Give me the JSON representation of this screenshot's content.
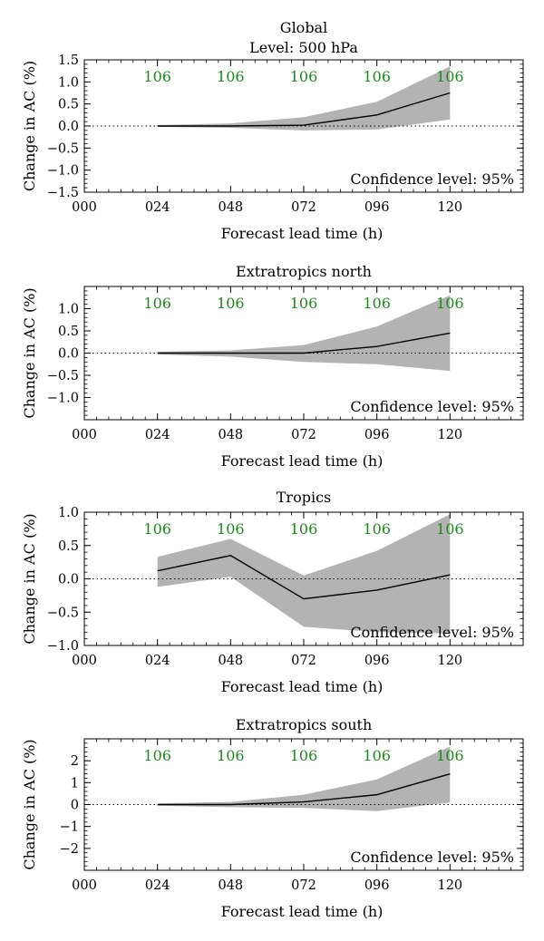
{
  "chart_data": [
    {
      "type": "line",
      "title": "Global",
      "subtitle": "Level: 500 hPa",
      "xlabel": "Forecast lead time (h)",
      "ylabel": "Change in AC (%)",
      "x_ticks": [
        "000",
        "024",
        "048",
        "072",
        "096",
        "120"
      ],
      "x_range": [
        0,
        144
      ],
      "ylim": [
        -1.5,
        1.5
      ],
      "y_ticks": [
        {
          "value": -1.5,
          "label": "−1.5"
        },
        {
          "value": -1.0,
          "label": "−1.0"
        },
        {
          "value": -0.5,
          "label": "−0.5"
        },
        {
          "value": 0.0,
          "label": "0.0"
        },
        {
          "value": 0.5,
          "label": "0.5"
        },
        {
          "value": 1.0,
          "label": "1.0"
        },
        {
          "value": 1.5,
          "label": "1.5"
        }
      ],
      "x": [
        24,
        48,
        72,
        96,
        120
      ],
      "values": [
        0.0,
        0.0,
        0.02,
        0.25,
        0.75
      ],
      "ci_upper": [
        0.02,
        0.06,
        0.2,
        0.55,
        1.35
      ],
      "ci_lower": [
        -0.02,
        -0.04,
        -0.1,
        -0.08,
        0.15
      ],
      "counts": [
        "106",
        "106",
        "106",
        "106",
        "106"
      ],
      "confidence_label": "Confidence level: 95%"
    },
    {
      "type": "line",
      "title": "Extratropics north",
      "subtitle": "",
      "xlabel": "Forecast lead time (h)",
      "ylabel": "Change in AC (%)",
      "x_ticks": [
        "000",
        "024",
        "048",
        "072",
        "096",
        "120"
      ],
      "x_range": [
        0,
        144
      ],
      "ylim": [
        -1.5,
        1.5
      ],
      "y_ticks": [
        {
          "value": -1.0,
          "label": "−1.0"
        },
        {
          "value": -0.5,
          "label": "−0.5"
        },
        {
          "value": 0.0,
          "label": "0.0"
        },
        {
          "value": 0.5,
          "label": "0.5"
        },
        {
          "value": 1.0,
          "label": "1.0"
        }
      ],
      "x": [
        24,
        48,
        72,
        96,
        120
      ],
      "values": [
        0.0,
        0.0,
        0.0,
        0.15,
        0.45
      ],
      "ci_upper": [
        0.03,
        0.06,
        0.18,
        0.6,
        1.3
      ],
      "ci_lower": [
        -0.03,
        -0.08,
        -0.2,
        -0.25,
        -0.4
      ],
      "counts": [
        "106",
        "106",
        "106",
        "106",
        "106"
      ],
      "confidence_label": "Confidence level: 95%"
    },
    {
      "type": "line",
      "title": "Tropics",
      "subtitle": "",
      "xlabel": "Forecast lead time (h)",
      "ylabel": "Change in AC (%)",
      "x_ticks": [
        "000",
        "024",
        "048",
        "072",
        "096",
        "120"
      ],
      "x_range": [
        0,
        144
      ],
      "ylim": [
        -1.0,
        1.0
      ],
      "y_ticks": [
        {
          "value": -1.0,
          "label": "−1.0"
        },
        {
          "value": -0.5,
          "label": "−0.5"
        },
        {
          "value": 0.0,
          "label": "0.0"
        },
        {
          "value": 0.5,
          "label": "0.5"
        },
        {
          "value": 1.0,
          "label": "1.0"
        }
      ],
      "x": [
        24,
        48,
        72,
        96,
        120
      ],
      "values": [
        0.12,
        0.35,
        -0.3,
        -0.17,
        0.06
      ],
      "ci_upper": [
        0.33,
        0.6,
        0.05,
        0.42,
        0.97
      ],
      "ci_lower": [
        -0.12,
        0.03,
        -0.72,
        -0.8,
        -0.82
      ],
      "counts": [
        "106",
        "106",
        "106",
        "106",
        "106"
      ],
      "confidence_label": "Confidence level: 95%"
    },
    {
      "type": "line",
      "title": "Extratropics south",
      "subtitle": "",
      "xlabel": "Forecast lead time (h)",
      "ylabel": "Change in AC (%)",
      "x_ticks": [
        "000",
        "024",
        "048",
        "072",
        "096",
        "120"
      ],
      "x_range": [
        0,
        144
      ],
      "ylim": [
        -3.0,
        3.0
      ],
      "y_ticks": [
        {
          "value": -2,
          "label": "−2"
        },
        {
          "value": -1,
          "label": "−1"
        },
        {
          "value": 0,
          "label": "0"
        },
        {
          "value": 1,
          "label": "1"
        },
        {
          "value": 2,
          "label": "2"
        }
      ],
      "x": [
        24,
        48,
        72,
        96,
        120
      ],
      "values": [
        0.0,
        0.0,
        0.12,
        0.45,
        1.4
      ],
      "ci_upper": [
        0.05,
        0.12,
        0.45,
        1.15,
        2.65
      ],
      "ci_lower": [
        -0.05,
        -0.12,
        -0.15,
        -0.3,
        0.1
      ],
      "counts": [
        "106",
        "106",
        "106",
        "106",
        "106"
      ],
      "confidence_label": "Confidence level: 95%"
    }
  ],
  "colors": {
    "band": "#b3b3b3",
    "line": "#000000",
    "count_text": "#1a8a1a",
    "axis": "#000000"
  }
}
